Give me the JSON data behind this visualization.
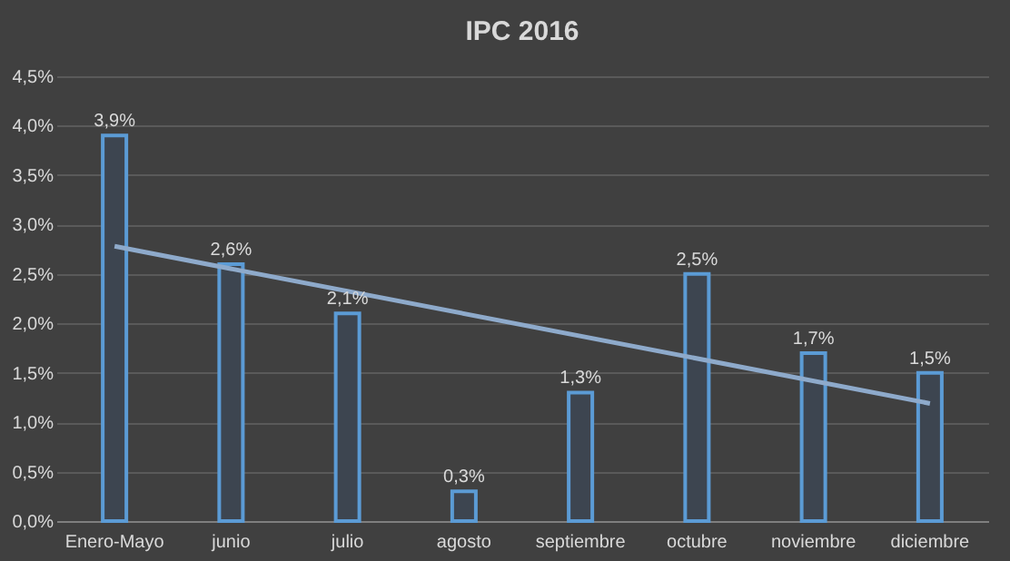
{
  "chart_data": {
    "type": "bar",
    "title": "IPC 2016",
    "categories": [
      "Enero-Mayo",
      "junio",
      "julio",
      "agosto",
      "septiembre",
      "octubre",
      "noviembre",
      "diciembre"
    ],
    "series": [
      {
        "color": "#5b9bd5",
        "values": [
          3.9,
          2.6,
          2.1,
          0.3,
          1.3,
          2.5,
          1.7,
          1.5
        ],
        "value_labels": [
          "3,9%",
          "2,6%",
          "2,1%",
          "0,3%",
          "1,3%",
          "2,5%",
          "1,7%",
          "1,5%"
        ]
      },
      {
        "type": "line",
        "color": "#8eaacb",
        "x": [
          "Enero-Mayo",
          "diciembre"
        ],
        "values": [
          2.78,
          1.19
        ]
      }
    ],
    "ylim": [
      0,
      4.5
    ],
    "yticks": [
      {
        "value": 0,
        "label": "0,0%"
      },
      {
        "value": 0.5,
        "label": "0,5%"
      },
      {
        "value": 1,
        "label": "1,0%"
      },
      {
        "value": 1.5,
        "label": "1,5%"
      },
      {
        "value": 2,
        "label": "2,0%"
      },
      {
        "value": 2.5,
        "label": "2,5%"
      },
      {
        "value": 3,
        "label": "3,0%"
      },
      {
        "value": 3.5,
        "label": "3,5%"
      },
      {
        "value": 4,
        "label": "4,0%"
      },
      {
        "value": 4.5,
        "label": "4,5%"
      }
    ],
    "grid": "y"
  }
}
